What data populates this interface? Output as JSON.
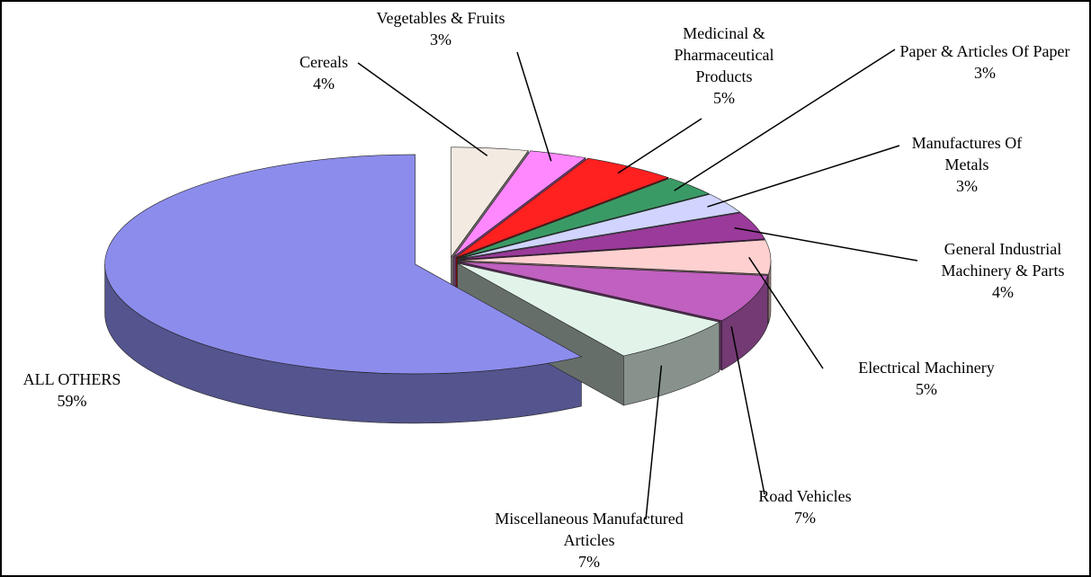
{
  "chart_data": {
    "type": "pie3d",
    "categories": [
      "Cereals",
      "Vegetables & Fruits",
      "Medicinal & Pharmaceutical Products",
      "Paper & Articles Of Paper",
      "Manufactures Of Metals",
      "General Industrial Machinery & Parts",
      "Electrical Machinery",
      "Road Vehicles",
      "Miscellaneous Manufactured Articles",
      "ALL OTHERS"
    ],
    "values": [
      4,
      3,
      5,
      3,
      3,
      4,
      5,
      7,
      7,
      59
    ],
    "value_labels": [
      "4%",
      "3%",
      "5%",
      "3%",
      "3%",
      "4%",
      "5%",
      "7%",
      "7%",
      "59%"
    ],
    "colors": [
      "#f3ebe2",
      "#ff88ff",
      "#ff2020",
      "#3a9a66",
      "#d0d4ff",
      "#9a3a9a",
      "#ffd0d0",
      "#c060c0",
      "#e2f4ea",
      "#8c8cec"
    ]
  }
}
